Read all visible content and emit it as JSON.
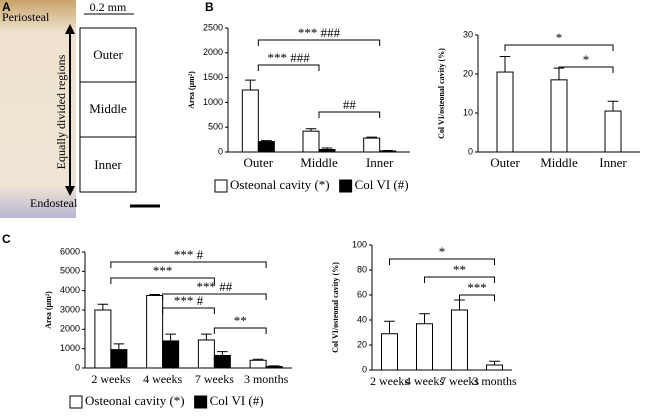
{
  "panel_labels": [
    "A",
    "B",
    "C"
  ],
  "image_panel": {
    "labels": [
      "Periosteal",
      "0.2 mm",
      "Equally divided regions",
      "Outer",
      "Middle",
      "Inner",
      "Endosteal"
    ]
  },
  "chart_data": [
    {
      "type": "bar",
      "y_label": "Area (μm²)",
      "categories": [
        "Outer",
        "Middle",
        "Inner"
      ],
      "series": [
        {
          "name": "Osteonal cavity (*)",
          "color": "#ffffff",
          "values": [
            1250,
            420,
            280
          ],
          "errors": [
            200,
            50,
            20
          ]
        },
        {
          "name": "Col VI (#)",
          "color": "#000000",
          "values": [
            210,
            50,
            20
          ],
          "errors": [
            20,
            30,
            10
          ]
        }
      ],
      "ylim": [
        0,
        2500
      ],
      "yticks": [
        0,
        500,
        1000,
        1500,
        2000,
        2500
      ],
      "annotations": [
        "*** ###",
        "*** ###",
        "##"
      ]
    },
    {
      "type": "bar",
      "y_label": "Col VI/osteonal cavity (%)",
      "categories": [
        "Outer",
        "Middle",
        "Inner"
      ],
      "values": [
        20.5,
        18.5,
        10.5
      ],
      "errors": [
        4,
        3,
        2.5
      ],
      "color": "#ffffff",
      "ylim": [
        0,
        30
      ],
      "yticks": [
        0,
        10,
        20,
        30
      ],
      "annotations": [
        "*",
        "*"
      ]
    },
    {
      "type": "bar",
      "y_label": "Area (μm²)",
      "categories": [
        "2 weeks",
        "4 weeks",
        "7 weeks",
        "3 months"
      ],
      "series": [
        {
          "name": "Osteonal cavity (*)",
          "color": "#ffffff",
          "values": [
            3000,
            3750,
            1450,
            400
          ],
          "errors": [
            300,
            50,
            300,
            50
          ]
        },
        {
          "name": "Col VI (#)",
          "color": "#000000",
          "values": [
            950,
            1400,
            650,
            80
          ],
          "errors": [
            300,
            350,
            200,
            30
          ]
        }
      ],
      "ylim": [
        0,
        6000
      ],
      "yticks": [
        0,
        1000,
        2000,
        3000,
        4000,
        5000,
        6000
      ],
      "annotations": [
        "*** #",
        "***",
        "*** ##",
        "*** #",
        "**"
      ]
    },
    {
      "type": "bar",
      "y_label": "Col VI/osteonal cavity (%)",
      "categories": [
        "2 weeks",
        "4 weeks",
        "7 weeks",
        "3 months"
      ],
      "values": [
        29,
        37,
        48,
        4
      ],
      "errors": [
        10,
        8,
        8,
        3
      ],
      "color": "#ffffff",
      "ylim": [
        0,
        100
      ],
      "yticks": [
        0,
        20,
        40,
        60,
        80,
        100
      ],
      "annotations": [
        "*",
        "**",
        "***"
      ]
    }
  ]
}
